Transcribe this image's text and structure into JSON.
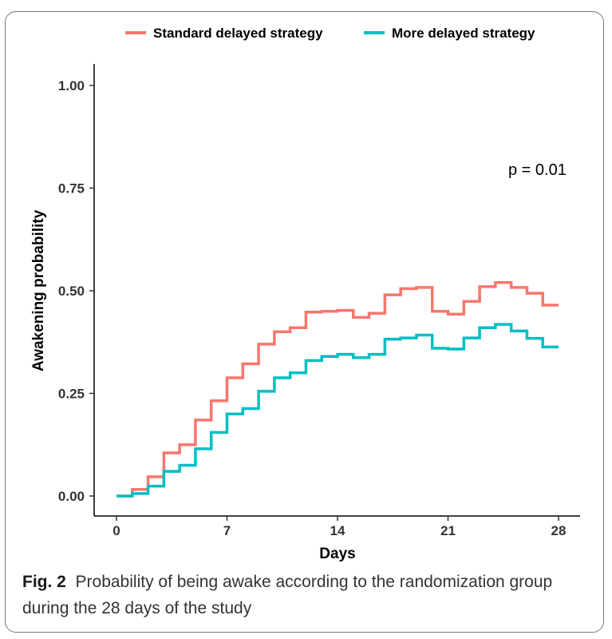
{
  "figure": {
    "label": "Fig. 2",
    "caption": "Probability of being awake according to the randomization group during the 28 days of the study"
  },
  "chart_data": {
    "type": "line",
    "step": true,
    "xlabel": "Days",
    "ylabel": "Awakening probability",
    "xlim": [
      0,
      28
    ],
    "ylim": [
      0,
      1
    ],
    "x_ticks": [
      "0",
      "7",
      "14",
      "21",
      "28"
    ],
    "x_tick_values": [
      0,
      7,
      14,
      21,
      28
    ],
    "y_ticks": [
      "0.00",
      "0.25",
      "0.50",
      "0.75",
      "1.00"
    ],
    "y_tick_values": [
      0,
      0.25,
      0.5,
      0.75,
      1.0
    ],
    "grid": false,
    "legend_position": "top",
    "annotation": "p = 0.01",
    "series": [
      {
        "name": "Standard delayed strategy",
        "color": "#F8766D",
        "x": [
          0,
          1,
          2,
          3,
          4,
          5,
          6,
          7,
          8,
          9,
          10,
          11,
          12,
          13,
          14,
          15,
          16,
          17,
          18,
          19,
          20,
          21,
          22,
          23,
          24,
          25,
          26,
          27,
          28
        ],
        "y": [
          0.0,
          0.016,
          0.047,
          0.105,
          0.125,
          0.185,
          0.232,
          0.288,
          0.322,
          0.37,
          0.4,
          0.41,
          0.448,
          0.45,
          0.452,
          0.435,
          0.445,
          0.49,
          0.505,
          0.508,
          0.45,
          0.443,
          0.474,
          0.51,
          0.52,
          0.508,
          0.494,
          0.465,
          0.465
        ]
      },
      {
        "name": "More delayed strategy",
        "color": "#00BFC4",
        "x": [
          0,
          1,
          2,
          3,
          4,
          5,
          6,
          7,
          8,
          9,
          10,
          11,
          12,
          13,
          14,
          15,
          16,
          17,
          18,
          19,
          20,
          21,
          22,
          23,
          24,
          25,
          26,
          27,
          28
        ],
        "y": [
          0.0,
          0.006,
          0.024,
          0.06,
          0.075,
          0.115,
          0.155,
          0.2,
          0.213,
          0.255,
          0.288,
          0.3,
          0.33,
          0.34,
          0.345,
          0.337,
          0.345,
          0.382,
          0.385,
          0.392,
          0.36,
          0.358,
          0.385,
          0.41,
          0.418,
          0.402,
          0.384,
          0.363,
          0.363
        ]
      }
    ]
  }
}
